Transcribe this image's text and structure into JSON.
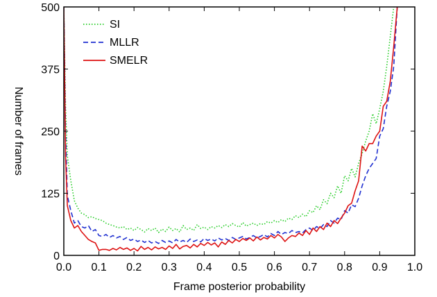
{
  "chart_data": {
    "type": "line",
    "title": "",
    "xlabel": "Frame posterior probability",
    "ylabel": "Number of frames",
    "xlim": [
      0.0,
      1.0
    ],
    "ylim": [
      0,
      500
    ],
    "xticks": [
      "0.0",
      "0.1",
      "0.2",
      "0.3",
      "0.4",
      "0.5",
      "0.6",
      "0.7",
      "0.8",
      "0.9",
      "1.0"
    ],
    "yticks": [
      "0",
      "125",
      "250",
      "375",
      "500"
    ],
    "grid": false,
    "legend_position": "top-left",
    "series": [
      {
        "name": "SI",
        "color": "#22cc22",
        "style": "dotted",
        "x": [
          0.0,
          0.005,
          0.01,
          0.02,
          0.03,
          0.04,
          0.05,
          0.06,
          0.07,
          0.08,
          0.09,
          0.1,
          0.11,
          0.12,
          0.13,
          0.14,
          0.15,
          0.16,
          0.17,
          0.18,
          0.19,
          0.2,
          0.21,
          0.22,
          0.23,
          0.24,
          0.25,
          0.26,
          0.27,
          0.28,
          0.29,
          0.3,
          0.31,
          0.32,
          0.33,
          0.34,
          0.35,
          0.36,
          0.37,
          0.38,
          0.39,
          0.4,
          0.41,
          0.42,
          0.43,
          0.44,
          0.45,
          0.46,
          0.47,
          0.48,
          0.49,
          0.5,
          0.51,
          0.52,
          0.53,
          0.54,
          0.55,
          0.56,
          0.57,
          0.58,
          0.59,
          0.6,
          0.61,
          0.62,
          0.63,
          0.64,
          0.65,
          0.66,
          0.67,
          0.68,
          0.69,
          0.7,
          0.71,
          0.72,
          0.73,
          0.74,
          0.75,
          0.76,
          0.77,
          0.78,
          0.79,
          0.8,
          0.81,
          0.82,
          0.83,
          0.84,
          0.85,
          0.86,
          0.87,
          0.88,
          0.89,
          0.9,
          0.91,
          0.92,
          0.93,
          0.94,
          0.95
        ],
        "values": [
          500,
          300,
          200,
          150,
          110,
          95,
          85,
          82,
          76,
          78,
          74,
          72,
          70,
          65,
          62,
          60,
          57,
          55,
          58,
          52,
          55,
          50,
          56,
          52,
          47,
          54,
          50,
          55,
          46,
          53,
          48,
          57,
          50,
          54,
          47,
          60,
          52,
          55,
          50,
          62,
          54,
          57,
          52,
          58,
          55,
          60,
          56,
          62,
          58,
          64,
          60,
          57,
          66,
          59,
          62,
          65,
          60,
          64,
          62,
          68,
          65,
          70,
          66,
          72,
          68,
          75,
          72,
          80,
          76,
          83,
          78,
          90,
          86,
          100,
          92,
          112,
          104,
          125,
          116,
          140,
          125,
          160,
          150,
          175,
          158,
          185,
          205,
          230,
          250,
          285,
          265,
          295,
          330,
          380,
          440,
          500,
          500
        ]
      },
      {
        "name": "MLLR",
        "color": "#1f2fd0",
        "style": "dashed",
        "x": [
          0.0,
          0.005,
          0.01,
          0.02,
          0.03,
          0.04,
          0.05,
          0.06,
          0.07,
          0.08,
          0.09,
          0.1,
          0.11,
          0.12,
          0.13,
          0.14,
          0.15,
          0.16,
          0.17,
          0.18,
          0.19,
          0.2,
          0.21,
          0.22,
          0.23,
          0.24,
          0.25,
          0.26,
          0.27,
          0.28,
          0.29,
          0.3,
          0.31,
          0.32,
          0.33,
          0.34,
          0.35,
          0.36,
          0.37,
          0.38,
          0.39,
          0.4,
          0.41,
          0.42,
          0.43,
          0.44,
          0.45,
          0.46,
          0.47,
          0.48,
          0.49,
          0.5,
          0.51,
          0.52,
          0.53,
          0.54,
          0.55,
          0.56,
          0.57,
          0.58,
          0.59,
          0.6,
          0.61,
          0.62,
          0.63,
          0.64,
          0.65,
          0.66,
          0.67,
          0.68,
          0.69,
          0.7,
          0.71,
          0.72,
          0.73,
          0.74,
          0.75,
          0.76,
          0.77,
          0.78,
          0.79,
          0.8,
          0.81,
          0.82,
          0.83,
          0.84,
          0.85,
          0.86,
          0.87,
          0.88,
          0.89,
          0.9,
          0.91,
          0.92,
          0.93,
          0.94,
          0.95
        ],
        "values": [
          500,
          250,
          120,
          90,
          65,
          70,
          58,
          55,
          60,
          48,
          52,
          40,
          38,
          42,
          36,
          40,
          35,
          38,
          32,
          36,
          30,
          33,
          28,
          31,
          26,
          30,
          25,
          28,
          24,
          30,
          26,
          29,
          25,
          32,
          27,
          30,
          26,
          33,
          28,
          31,
          27,
          34,
          30,
          33,
          29,
          35,
          31,
          34,
          30,
          36,
          32,
          35,
          38,
          33,
          36,
          40,
          35,
          38,
          42,
          37,
          44,
          40,
          48,
          42,
          46,
          44,
          50,
          46,
          48,
          45,
          52,
          55,
          50,
          58,
          54,
          62,
          58,
          70,
          65,
          75,
          72,
          90,
          85,
          102,
          98,
          115,
          140,
          160,
          175,
          185,
          195,
          240,
          255,
          300,
          330,
          380,
          500
        ]
      },
      {
        "name": "SMELR",
        "color": "#dd1111",
        "style": "solid",
        "x": [
          0.0,
          0.005,
          0.01,
          0.02,
          0.03,
          0.04,
          0.05,
          0.06,
          0.07,
          0.08,
          0.09,
          0.1,
          0.11,
          0.12,
          0.13,
          0.14,
          0.15,
          0.16,
          0.17,
          0.18,
          0.19,
          0.2,
          0.21,
          0.22,
          0.23,
          0.24,
          0.25,
          0.26,
          0.27,
          0.28,
          0.29,
          0.3,
          0.31,
          0.32,
          0.33,
          0.34,
          0.35,
          0.36,
          0.37,
          0.38,
          0.39,
          0.4,
          0.41,
          0.42,
          0.43,
          0.44,
          0.45,
          0.46,
          0.47,
          0.48,
          0.49,
          0.5,
          0.51,
          0.52,
          0.53,
          0.54,
          0.55,
          0.56,
          0.57,
          0.58,
          0.59,
          0.6,
          0.61,
          0.62,
          0.63,
          0.64,
          0.65,
          0.66,
          0.67,
          0.68,
          0.69,
          0.7,
          0.71,
          0.72,
          0.73,
          0.74,
          0.75,
          0.76,
          0.77,
          0.78,
          0.79,
          0.8,
          0.81,
          0.82,
          0.83,
          0.84,
          0.85,
          0.86,
          0.87,
          0.88,
          0.89,
          0.9,
          0.91,
          0.92,
          0.93,
          0.94,
          0.95
        ],
        "values": [
          500,
          200,
          100,
          70,
          55,
          60,
          48,
          40,
          32,
          28,
          25,
          10,
          12,
          12,
          10,
          14,
          11,
          16,
          12,
          15,
          10,
          14,
          9,
          18,
          12,
          16,
          11,
          17,
          13,
          16,
          12,
          19,
          14,
          22,
          13,
          18,
          20,
          15,
          22,
          17,
          24,
          20,
          26,
          21,
          25,
          17,
          27,
          22,
          30,
          25,
          32,
          28,
          34,
          30,
          35,
          29,
          37,
          31,
          36,
          33,
          40,
          35,
          42,
          37,
          28,
          35,
          40,
          38,
          45,
          40,
          50,
          42,
          55,
          48,
          58,
          52,
          65,
          58,
          70,
          64,
          75,
          85,
          100,
          105,
          130,
          150,
          220,
          210,
          225,
          225,
          240,
          250,
          300,
          310,
          350,
          420,
          500
        ]
      }
    ]
  }
}
